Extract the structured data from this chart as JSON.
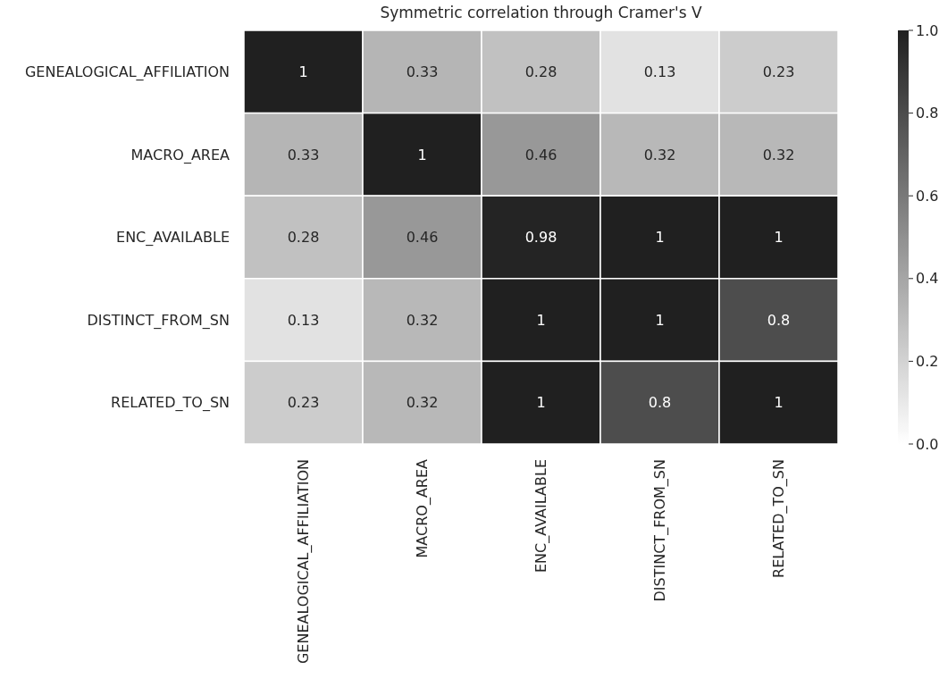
{
  "chart_data": {
    "type": "heatmap",
    "title": "Symmetric correlation through Cramer's V",
    "categories": [
      "GENEALOGICAL_AFFILIATION",
      "MACRO_AREA",
      "ENC_AVAILABLE",
      "DISTINCT_FROM_SN",
      "RELATED_TO_SN"
    ],
    "y_categories": [
      "GENEALOGICAL_AFFILIATION",
      "MACRO_AREA",
      "ENC_AVAILABLE",
      "DISTINCT_FROM_SN",
      "RELATED_TO_SN"
    ],
    "cells": [
      [
        1,
        0.33,
        0.28,
        0.13,
        0.23
      ],
      [
        0.33,
        1,
        0.46,
        0.32,
        0.32
      ],
      [
        0.28,
        0.46,
        0.98,
        1,
        1
      ],
      [
        0.13,
        0.32,
        1,
        1,
        0.8
      ],
      [
        0.23,
        0.32,
        1,
        0.8,
        1
      ]
    ],
    "clim": [
      0,
      1
    ],
    "cticks": [
      {
        "value": 0,
        "label": "0.0"
      },
      {
        "value": 0.2,
        "label": "0.2"
      },
      {
        "value": 0.4,
        "label": "0.4"
      },
      {
        "value": 0.6,
        "label": "0.6"
      },
      {
        "value": 0.8,
        "label": "0.8"
      },
      {
        "value": 1,
        "label": "1.0"
      }
    ],
    "data_labels": true
  }
}
